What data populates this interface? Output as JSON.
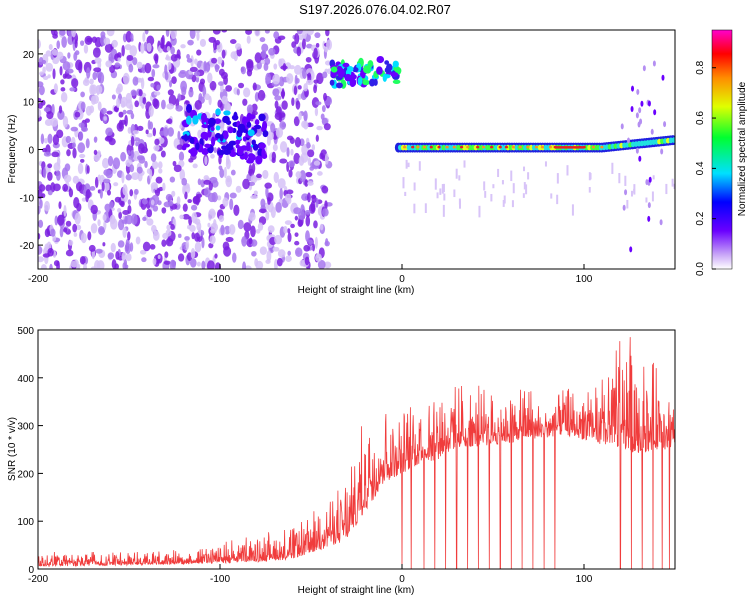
{
  "title": "S197.2026.076.04.02.R07",
  "colors": {
    "snr_line": "#f03c3c",
    "speck": "#7a1fe0",
    "ridge_core": "#e82020",
    "ridge_edge": "#2020e0",
    "ridge_mid": "#20e0e0"
  },
  "chart_data": [
    {
      "type": "heatmap",
      "title": "S197.2026.076.04.02.R07",
      "xlabel": "Height of straight line (km)",
      "ylabel": "Frequency (Hz)",
      "xlim": [
        -200,
        150
      ],
      "ylim": [
        -25,
        25
      ],
      "x_ticks": [
        -200,
        -100,
        0,
        100
      ],
      "x_tick_labels": [
        "-200",
        "-100",
        "0",
        "100"
      ],
      "y_ticks": [
        20,
        10,
        0,
        -10,
        -20
      ],
      "y_tick_labels": [
        "20",
        "10",
        "0",
        "-10",
        "-20"
      ],
      "colorbar": {
        "label": "Normalized spectral amplitude",
        "range": [
          0,
          0.95
        ],
        "ticks": [
          0.0,
          0.2,
          0.4,
          0.6,
          0.8
        ],
        "tick_labels": [
          "0.0",
          "0.2",
          "0.4",
          "0.6",
          "0.8"
        ],
        "colormap": "rainbow"
      },
      "features": [
        {
          "x_range": [
            -200,
            -40
          ],
          "freq_center": 0,
          "amplitude": 0.15
        },
        {
          "x_range": [
            -40,
            -2
          ],
          "freq_center": 15,
          "amplitude": 0.55
        },
        {
          "x_range": [
            -2,
            150
          ],
          "freq_center": 0.5,
          "amplitude": 0.9
        }
      ]
    },
    {
      "type": "line",
      "xlabel": "Height of straight line (km)",
      "ylabel": "SNR (10 * v/v)",
      "xlim": [
        -200,
        150
      ],
      "ylim": [
        0,
        500
      ],
      "x_ticks": [
        -200,
        -100,
        0,
        100
      ],
      "x_tick_labels": [
        "-200",
        "-100",
        "0",
        "100"
      ],
      "y_ticks": [
        0,
        100,
        200,
        300,
        400,
        500
      ],
      "y_tick_labels": [
        "0",
        "100",
        "200",
        "300",
        "400",
        "500"
      ],
      "envelope": {
        "x": [
          -200,
          -150,
          -120,
          -100,
          -80,
          -60,
          -45,
          -30,
          -20,
          -10,
          0,
          10,
          20,
          30,
          40,
          50,
          60,
          70,
          80,
          90,
          100,
          110,
          120,
          130,
          140,
          150
        ],
        "low": [
          5,
          8,
          10,
          12,
          15,
          20,
          40,
          60,
          120,
          180,
          200,
          220,
          230,
          250,
          255,
          260,
          265,
          270,
          275,
          280,
          270,
          260,
          250,
          240,
          250,
          250
        ],
        "high": [
          35,
          38,
          40,
          55,
          70,
          90,
          130,
          190,
          330,
          360,
          320,
          370,
          390,
          380,
          390,
          360,
          370,
          380,
          340,
          380,
          370,
          400,
          500,
          480,
          420,
          350
        ]
      },
      "dropouts_to_zero_at_x": [
        0,
        5,
        12,
        18,
        24,
        30,
        36,
        42,
        48,
        54,
        60,
        66,
        72,
        78,
        84,
        120,
        126,
        132,
        138,
        143,
        147
      ]
    }
  ]
}
